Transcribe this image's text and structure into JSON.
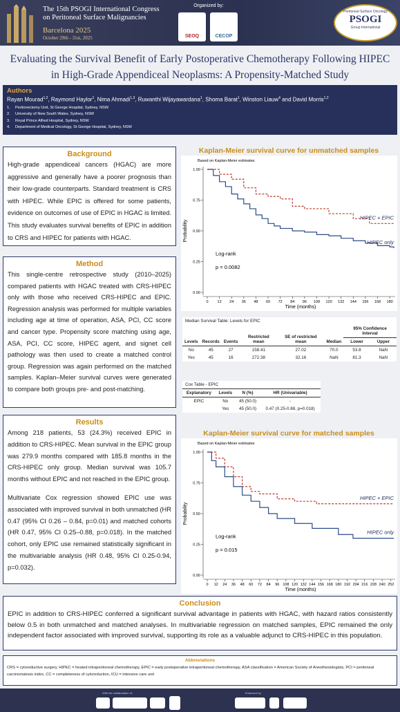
{
  "header": {
    "line1": "The 15th PSOGI International Congress",
    "line2": "on Peritoneal Surface Malignancies",
    "city": "Barcelona 2025",
    "dates": "October 29th - 31st, 2025",
    "organized_by": "Organized by:",
    "logo1": "SEOQ",
    "logo2": "CECOP",
    "psogi_top": "Peritoneal Surface Oncology",
    "psogi_name": "PSOGI",
    "psogi_bottom": "Group International"
  },
  "title": "Evaluating the Survival Benefit of Early Postoperative Chemotherapy Following HIPEC in High-Grade Appendiceal Neoplasms: A Propensity-Matched Study",
  "authors": {
    "heading": "Authors",
    "list": [
      {
        "name": "Rayan Mourad",
        "aff": "1,2"
      },
      {
        "name": "Raymond Haylor",
        "aff": "1"
      },
      {
        "name": "Nima Ahmadi",
        "aff": "1,3"
      },
      {
        "name": "Ruwanthi Wijayawardana",
        "aff": "1"
      },
      {
        "name": "Shoma Barat",
        "aff": "1"
      },
      {
        "name": "Winston Liauw",
        "aff": "4"
      },
      {
        "name": "David Morris",
        "aff": "1,2"
      }
    ],
    "conjunction": "and",
    "affiliations": [
      {
        "num": "1.",
        "text": "Peritonectomy Unit, St George Hospital, Sydney, NSW"
      },
      {
        "num": "2.",
        "text": "University of New South Wales, Sydney, NSW"
      },
      {
        "num": "3.",
        "text": "Royal Prince Alfred Hospital, Sydney, NSW"
      },
      {
        "num": "4.",
        "text": "Department of Medical Oncology, St George Hospital, Sydney, NSW"
      }
    ]
  },
  "background": {
    "heading": "Background",
    "text": "High-grade appendiceal cancers (HGAC) are more aggressive and generally have a poorer prognosis than their low-grade counterparts. Standard treatment is CRS with HIPEC. While EPIC is offered for some patients, evidence on outcomes of use of EPIC in HGAC is limited. This study evaluates survival benefits of EPIC in addition to CRS and HIPEC for patients with HGAC."
  },
  "method": {
    "heading": "Method",
    "text": "This single-centre retrospective study (2010–2025) compared patients with HGAC treated with CRS-HIPEC only with those who received CRS-HIPEC and EPIC. Regression analysis was performed for multiple variables including age at time of operation, ASA, PCI, CC score and cancer type. Propensity score matching using age, ASA, PCI, CC score, HIPEC agent, and signet cell pathology was then used to create a matched control group. Regression was again performed on the matched samples. Kaplan–Meier survival curves were generated to compare both groups pre- and post-matching."
  },
  "results": {
    "heading": "Results",
    "paragraphs": [
      "Among 218 patients, 53 (24.3%) received EPIC in addition to CRS-HIPEC. Mean survival in the EPIC group was 279.9 months compared with 185.8 months in the CRS-HIPEC only group. Median survival was 105.7 months without EPIC and not reached in the EPIC group.",
      "Multivariate Cox regression showed EPIC use was associated with improved survival in both unmatched (HR 0.47 (95% CI 0.26 – 0.84, p=0.01) and matched cohorts (HR 0.47, 95% CI 0.25–0.88, p=0.018). In the matched cohort, only EPIC use remained statistically significant in the multivariable analysis (HR 0.48, 95% CI 0.25-0.94, p=0.032)."
    ]
  },
  "km_unmatched": {
    "type": "line",
    "title": "Kaplan-Meier survival curve for unmatched samples",
    "subtitle": "Based on Kaplan-Meier estimates",
    "x_label": "Time (months)",
    "y_label": "Probability",
    "annotation": "Log-rank",
    "p_value": "p = 0.0082",
    "xlim": [
      0,
      184
    ],
    "ylim": [
      0,
      1
    ],
    "xticks": [
      0,
      12,
      24,
      36,
      48,
      60,
      72,
      84,
      96,
      108,
      120,
      132,
      144,
      156,
      168,
      180
    ],
    "yticks": [
      {
        "value": 0,
        "label": "0.00"
      },
      {
        "value": 0.25,
        "label": "0.25"
      },
      {
        "value": 0.5,
        "label": "0.50"
      },
      {
        "value": 0.75,
        "label": "0.75"
      },
      {
        "value": 1,
        "label": "1.00"
      }
    ],
    "series": [
      {
        "name": "HIPEC + EPIC",
        "color": "#c0392b",
        "dashed": true,
        "x": [
          0,
          12,
          24,
          36,
          48,
          60,
          72,
          84,
          96,
          120,
          144,
          160,
          184
        ],
        "values": [
          1,
          0.96,
          0.92,
          0.85,
          0.8,
          0.78,
          0.76,
          0.7,
          0.68,
          0.64,
          0.6,
          0.56,
          0.56
        ]
      },
      {
        "name": "HIPEC only",
        "color": "#2b4a8a",
        "dashed": false,
        "x": [
          0,
          6,
          12,
          18,
          24,
          30,
          36,
          42,
          48,
          54,
          60,
          66,
          72,
          84,
          96,
          108,
          120,
          132,
          144,
          156,
          168,
          180,
          184
        ],
        "values": [
          1,
          0.95,
          0.9,
          0.86,
          0.8,
          0.76,
          0.72,
          0.68,
          0.63,
          0.6,
          0.56,
          0.54,
          0.52,
          0.5,
          0.49,
          0.47,
          0.46,
          0.44,
          0.42,
          0.4,
          0.38,
          0.37,
          0.36
        ]
      }
    ]
  },
  "median_table": {
    "title": "Median Survival Table: Levels for EPIC",
    "ci_header": "95% Confidence Interval",
    "headers": [
      "Levels",
      "Records",
      "Events",
      "Restricted mean",
      "SE of restricted mean",
      "Median",
      "Lower",
      "Upper"
    ],
    "rows": [
      [
        "No",
        "45",
        "27",
        "158.41",
        "27.02",
        "70.0",
        "53.8",
        "NaN"
      ],
      [
        "Yes",
        "45",
        "16",
        "272.38",
        "32.16",
        "NaN",
        "81.3",
        "NaN"
      ]
    ]
  },
  "cox_table": {
    "title": "Cox Table - EPIC",
    "headers": [
      "Explanatory",
      "Levels",
      "N (%)",
      "HR (Univariable)"
    ],
    "rows": [
      [
        "EPIC",
        "No",
        "45 (50.0)",
        "-"
      ],
      [
        null,
        "Yes",
        "45 (50.0)",
        "0.47 (0.25-0.88, p=0.018)"
      ]
    ]
  },
  "km_matched": {
    "type": "line",
    "title": "Kaplan-Meier survival curve for matched samples",
    "subtitle": "Based on Kaplan-Meier estimates",
    "x_label": "Time (months)",
    "y_label": "Probability",
    "annotation": "Log-rank",
    "p_value": "p = 0.015",
    "xlim": [
      0,
      256
    ],
    "ylim": [
      0,
      1
    ],
    "xticks": [
      0,
      12,
      24,
      36,
      48,
      60,
      72,
      84,
      96,
      108,
      120,
      132,
      144,
      156,
      168,
      180,
      192,
      204,
      216,
      228,
      240,
      252
    ],
    "yticks": [
      {
        "value": 0,
        "label": "0.00"
      },
      {
        "value": 0.25,
        "label": "0.25"
      },
      {
        "value": 0.5,
        "label": "0.50"
      },
      {
        "value": 0.75,
        "label": "0.75"
      },
      {
        "value": 1,
        "label": "1.00"
      }
    ],
    "series": [
      {
        "name": "HIPEC + EPIC",
        "color": "#c0392b",
        "dashed": true,
        "x": [
          0,
          12,
          24,
          36,
          48,
          60,
          72,
          96,
          120,
          150,
          200,
          256
        ],
        "values": [
          1,
          0.95,
          0.88,
          0.8,
          0.72,
          0.68,
          0.66,
          0.62,
          0.6,
          0.58,
          0.58,
          0.58
        ]
      },
      {
        "name": "HIPEC only",
        "color": "#2b4a8a",
        "dashed": false,
        "x": [
          0,
          6,
          12,
          24,
          36,
          48,
          60,
          72,
          84,
          96,
          120,
          144,
          180,
          200,
          256
        ],
        "values": [
          1,
          0.93,
          0.88,
          0.8,
          0.72,
          0.65,
          0.6,
          0.55,
          0.5,
          0.46,
          0.42,
          0.38,
          0.33,
          0.3,
          0.3
        ]
      }
    ]
  },
  "conclusion": {
    "heading": "Conclusion",
    "text": "EPIC in addition to CRS-HIPEC conferred a significant survival advantage in patients with HGAC, with hazard ratios consistently below 0.5 in both unmatched and matched analyses. In multivariable regression on matched samples, EPIC remained the only independent factor associated with improved survival, supporting its role as a valuable adjunct to CRS-HIPEC in this population."
  },
  "abbreviations": {
    "heading": "Abbreviations",
    "text": "CRS = cytoreductive surgery, HIPEC = heated intraperitoneal chemotherapy, EPIC = early postoperative intraperitoneal chemotherapy, ASA classification = American Society of Anesthesiologists, PCI = peritoneal carcinomatosis index, CC = completeness of cytoreduction, ICU = intensive care unit"
  },
  "footer": {
    "collaboration": "With the collaboration of:",
    "endorsed": "Endorsed by:"
  }
}
